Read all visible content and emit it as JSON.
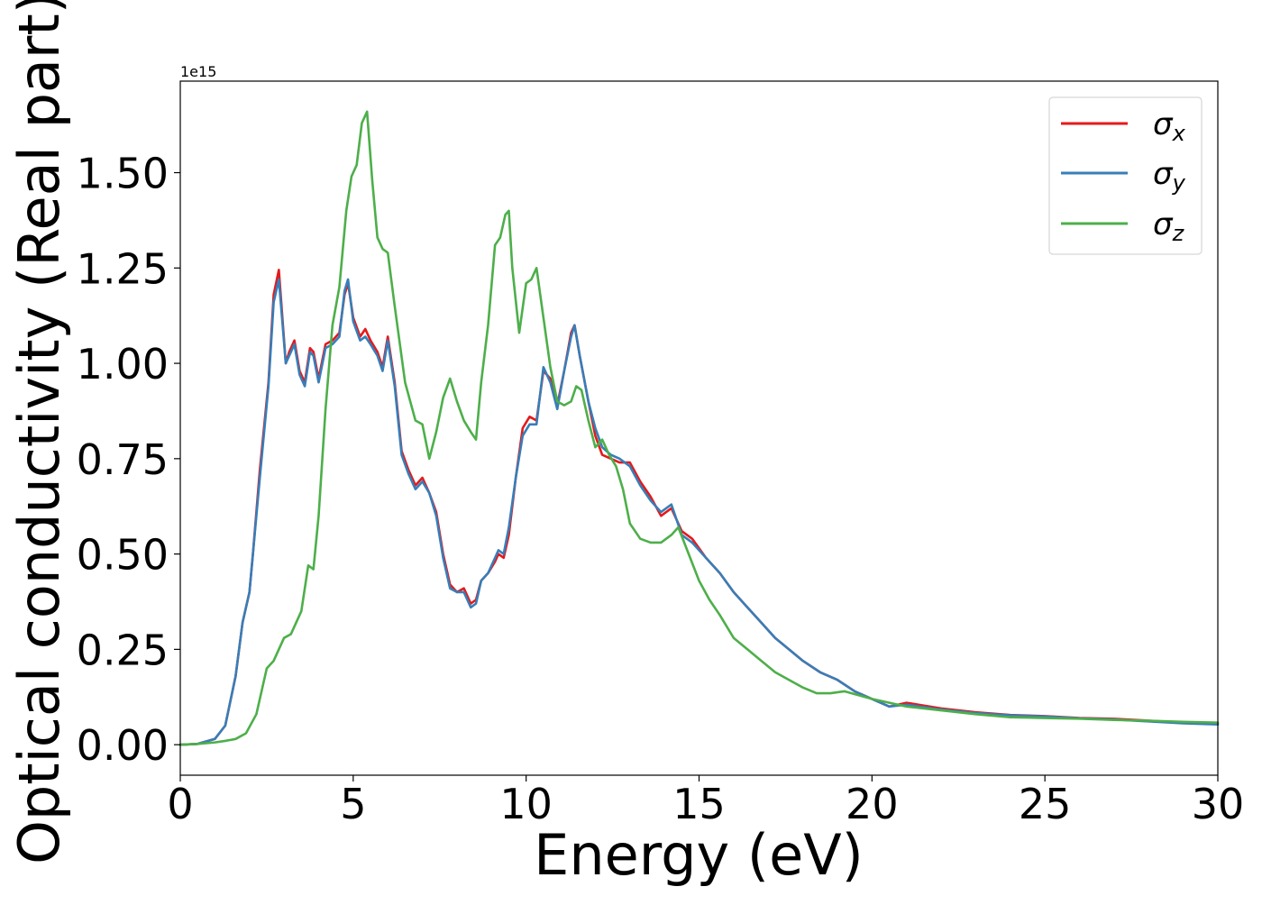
{
  "chart_data": {
    "type": "line",
    "title": "",
    "xlabel": "Energy (eV)",
    "ylabel": "Optical conductivity (Real part)",
    "y_offset_text": "1e15",
    "xlim": [
      0,
      30
    ],
    "ylim": [
      -0.08,
      1.74
    ],
    "x_ticks": [
      0,
      5,
      10,
      15,
      20,
      25,
      30
    ],
    "x_tick_labels": [
      "0",
      "5",
      "10",
      "15",
      "20",
      "25",
      "30"
    ],
    "y_ticks": [
      0,
      0.25,
      0.5,
      0.75,
      1.0,
      1.25,
      1.5
    ],
    "y_tick_labels": [
      "0.00",
      "0.25",
      "0.50",
      "0.75",
      "1.00",
      "1.25",
      "1.50"
    ],
    "grid": false,
    "legend_position": "top-right",
    "legend_entries": [
      {
        "base": "σ",
        "sub": "x"
      },
      {
        "base": "σ",
        "sub": "y"
      },
      {
        "base": "σ",
        "sub": "z"
      }
    ],
    "colors": [
      "#e41a1c",
      "#377eb8",
      "#4daf4a"
    ],
    "series": [
      {
        "name": "σx",
        "x": [
          0,
          0.5,
          1.0,
          1.3,
          1.6,
          1.8,
          2.0,
          2.1,
          2.3,
          2.55,
          2.7,
          2.85,
          3.05,
          3.15,
          3.3,
          3.45,
          3.6,
          3.75,
          3.85,
          4.0,
          4.2,
          4.4,
          4.6,
          4.75,
          4.85,
          5.0,
          5.2,
          5.35,
          5.5,
          5.7,
          5.85,
          6.0,
          6.2,
          6.4,
          6.6,
          6.8,
          7.0,
          7.2,
          7.4,
          7.6,
          7.8,
          8.0,
          8.2,
          8.4,
          8.55,
          8.7,
          8.9,
          9.1,
          9.2,
          9.35,
          9.5,
          9.7,
          9.9,
          10.1,
          10.3,
          10.5,
          10.7,
          10.9,
          11.1,
          11.3,
          11.4,
          11.55,
          11.8,
          12.0,
          12.2,
          12.45,
          12.7,
          13.0,
          13.3,
          13.6,
          13.9,
          14.2,
          14.5,
          14.8,
          15.2,
          15.6,
          16.0,
          16.4,
          16.8,
          17.2,
          17.6,
          18.0,
          18.5,
          19.0,
          19.5,
          20.0,
          20.5,
          21.0,
          22.0,
          23.0,
          24.0,
          25.0,
          26.0,
          27.0,
          28.0,
          29.0,
          30.0
        ],
        "y": [
          0,
          0.002,
          0.015,
          0.05,
          0.18,
          0.32,
          0.4,
          0.5,
          0.72,
          0.95,
          1.18,
          1.245,
          1.0,
          1.03,
          1.06,
          0.98,
          0.95,
          1.04,
          1.03,
          0.96,
          1.05,
          1.06,
          1.08,
          1.18,
          1.21,
          1.12,
          1.07,
          1.09,
          1.06,
          1.03,
          0.99,
          1.07,
          0.95,
          0.77,
          0.72,
          0.68,
          0.7,
          0.66,
          0.61,
          0.5,
          0.42,
          0.4,
          0.41,
          0.37,
          0.38,
          0.43,
          0.45,
          0.48,
          0.5,
          0.49,
          0.55,
          0.7,
          0.83,
          0.86,
          0.85,
          0.98,
          0.96,
          0.89,
          0.98,
          1.08,
          1.1,
          1.02,
          0.9,
          0.81,
          0.76,
          0.75,
          0.74,
          0.74,
          0.69,
          0.65,
          0.6,
          0.62,
          0.56,
          0.54,
          0.49,
          0.45,
          0.4,
          0.36,
          0.32,
          0.28,
          0.25,
          0.22,
          0.19,
          0.17,
          0.14,
          0.12,
          0.1,
          0.11,
          0.095,
          0.085,
          0.078,
          0.075,
          0.07,
          0.068,
          0.063,
          0.058,
          0.055
        ]
      },
      {
        "name": "σy",
        "x": [
          0,
          0.5,
          1.0,
          1.3,
          1.6,
          1.8,
          2.0,
          2.1,
          2.3,
          2.55,
          2.7,
          2.85,
          3.05,
          3.15,
          3.3,
          3.45,
          3.6,
          3.75,
          3.85,
          4.0,
          4.2,
          4.4,
          4.6,
          4.75,
          4.85,
          5.0,
          5.2,
          5.35,
          5.5,
          5.7,
          5.85,
          6.0,
          6.2,
          6.4,
          6.6,
          6.8,
          7.0,
          7.2,
          7.4,
          7.6,
          7.8,
          8.0,
          8.2,
          8.4,
          8.55,
          8.7,
          8.9,
          9.1,
          9.2,
          9.35,
          9.5,
          9.7,
          9.9,
          10.1,
          10.3,
          10.5,
          10.7,
          10.9,
          11.1,
          11.3,
          11.4,
          11.55,
          11.8,
          12.0,
          12.2,
          12.45,
          12.7,
          13.0,
          13.3,
          13.6,
          13.9,
          14.2,
          14.5,
          14.8,
          15.2,
          15.6,
          16.0,
          16.4,
          16.8,
          17.2,
          17.6,
          18.0,
          18.5,
          19.0,
          19.5,
          20.0,
          20.5,
          21.0,
          22.0,
          23.0,
          24.0,
          25.0,
          26.0,
          27.0,
          28.0,
          29.0,
          30.0
        ],
        "y": [
          0,
          0.002,
          0.015,
          0.05,
          0.18,
          0.32,
          0.4,
          0.5,
          0.7,
          0.94,
          1.16,
          1.22,
          1.0,
          1.02,
          1.05,
          0.97,
          0.94,
          1.03,
          1.02,
          0.95,
          1.04,
          1.05,
          1.07,
          1.19,
          1.22,
          1.11,
          1.06,
          1.07,
          1.05,
          1.02,
          0.98,
          1.06,
          0.94,
          0.76,
          0.71,
          0.67,
          0.69,
          0.66,
          0.6,
          0.49,
          0.41,
          0.4,
          0.4,
          0.36,
          0.37,
          0.43,
          0.45,
          0.49,
          0.51,
          0.5,
          0.57,
          0.7,
          0.81,
          0.84,
          0.84,
          0.99,
          0.95,
          0.88,
          0.98,
          1.07,
          1.1,
          1.02,
          0.9,
          0.83,
          0.78,
          0.76,
          0.75,
          0.73,
          0.68,
          0.64,
          0.61,
          0.63,
          0.55,
          0.53,
          0.49,
          0.45,
          0.4,
          0.36,
          0.32,
          0.28,
          0.25,
          0.22,
          0.19,
          0.17,
          0.14,
          0.12,
          0.1,
          0.105,
          0.092,
          0.083,
          0.077,
          0.074,
          0.069,
          0.066,
          0.061,
          0.056,
          0.053
        ]
      },
      {
        "name": "σz",
        "x": [
          0,
          0.5,
          1.0,
          1.3,
          1.6,
          1.9,
          2.2,
          2.5,
          2.7,
          3.0,
          3.2,
          3.5,
          3.7,
          3.85,
          4.0,
          4.2,
          4.4,
          4.6,
          4.8,
          4.95,
          5.1,
          5.25,
          5.4,
          5.55,
          5.7,
          5.85,
          6.0,
          6.2,
          6.5,
          6.8,
          7.0,
          7.2,
          7.4,
          7.6,
          7.8,
          8.0,
          8.2,
          8.4,
          8.55,
          8.7,
          8.9,
          9.1,
          9.25,
          9.4,
          9.5,
          9.6,
          9.8,
          10.0,
          10.15,
          10.3,
          10.5,
          10.7,
          10.9,
          11.1,
          11.3,
          11.45,
          11.6,
          11.8,
          12.0,
          12.2,
          12.4,
          12.6,
          12.8,
          13.0,
          13.3,
          13.6,
          13.9,
          14.2,
          14.4,
          14.7,
          15.0,
          15.3,
          15.6,
          16.0,
          16.4,
          16.8,
          17.2,
          17.6,
          18.0,
          18.4,
          18.8,
          19.2,
          19.6,
          20.0,
          20.5,
          21.0,
          22.0,
          23.0,
          24.0,
          25.0,
          26.0,
          27.0,
          28.0,
          29.0,
          30.0
        ],
        "y": [
          0,
          0.002,
          0.006,
          0.01,
          0.015,
          0.03,
          0.08,
          0.2,
          0.22,
          0.28,
          0.29,
          0.35,
          0.47,
          0.46,
          0.6,
          0.88,
          1.1,
          1.2,
          1.4,
          1.49,
          1.52,
          1.63,
          1.66,
          1.48,
          1.33,
          1.3,
          1.29,
          1.15,
          0.95,
          0.85,
          0.84,
          0.75,
          0.82,
          0.91,
          0.96,
          0.9,
          0.85,
          0.82,
          0.8,
          0.95,
          1.1,
          1.31,
          1.33,
          1.39,
          1.4,
          1.25,
          1.08,
          1.21,
          1.22,
          1.25,
          1.12,
          0.99,
          0.9,
          0.89,
          0.9,
          0.94,
          0.93,
          0.85,
          0.78,
          0.8,
          0.76,
          0.73,
          0.67,
          0.58,
          0.54,
          0.53,
          0.53,
          0.55,
          0.57,
          0.5,
          0.43,
          0.38,
          0.34,
          0.28,
          0.25,
          0.22,
          0.19,
          0.17,
          0.15,
          0.135,
          0.135,
          0.14,
          0.13,
          0.12,
          0.11,
          0.1,
          0.09,
          0.08,
          0.072,
          0.07,
          0.068,
          0.065,
          0.063,
          0.06,
          0.058
        ]
      }
    ]
  }
}
